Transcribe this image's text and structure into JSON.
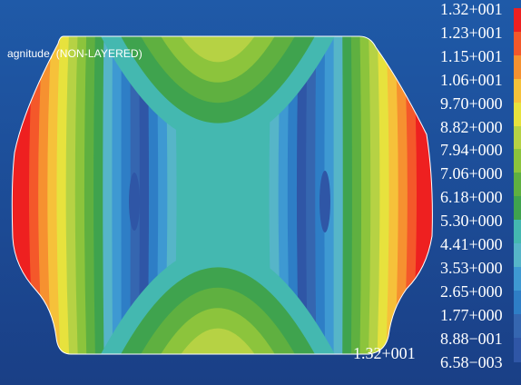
{
  "result_title": "agnitude, (NON-LAYERED)",
  "probe_value": "1.32+001",
  "legend": {
    "labels": [
      "1.32+001",
      "1.23+001",
      "1.15+001",
      "1.06+001",
      "9.70+000",
      "8.82+000",
      "7.94+000",
      "7.06+000",
      "6.18+000",
      "5.30+000",
      "4.41+000",
      "3.53+000",
      "2.65+000",
      "1.77+000",
      "8.88−001",
      "6.58−003"
    ],
    "colors": [
      "#ee2020",
      "#f4582a",
      "#f69130",
      "#f6c13a",
      "#e7e23d",
      "#b6d244",
      "#8cc43c",
      "#5fb040",
      "#3fa34e",
      "#44b8b0",
      "#56b5c8",
      "#3e99d2",
      "#2e7ec6",
      "#3566b0",
      "#2f56a6"
    ],
    "background_top": "#1f5aa8",
    "background_bottom": "#1a3f86"
  }
}
